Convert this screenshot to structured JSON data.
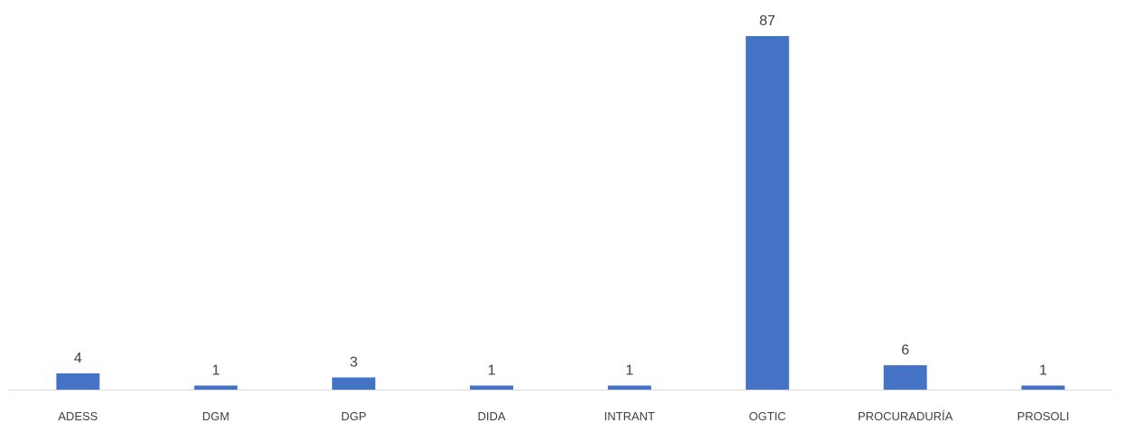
{
  "chart_data": {
    "type": "bar",
    "title": "",
    "xlabel": "",
    "ylabel": "",
    "categories": [
      "ADESS",
      "DGM",
      "DGP",
      "DIDA",
      "INTRANT",
      "OGTIC",
      "PROCURADURÍA",
      "PROSOLI"
    ],
    "values": [
      4,
      1,
      3,
      1,
      1,
      87,
      6,
      1
    ],
    "ylim": [
      0,
      87
    ],
    "grid": false,
    "legend": "none",
    "data_labels": true,
    "bar_color": "#4472C4",
    "axis_color": "#D9D9D9",
    "text_color": "#404040"
  }
}
